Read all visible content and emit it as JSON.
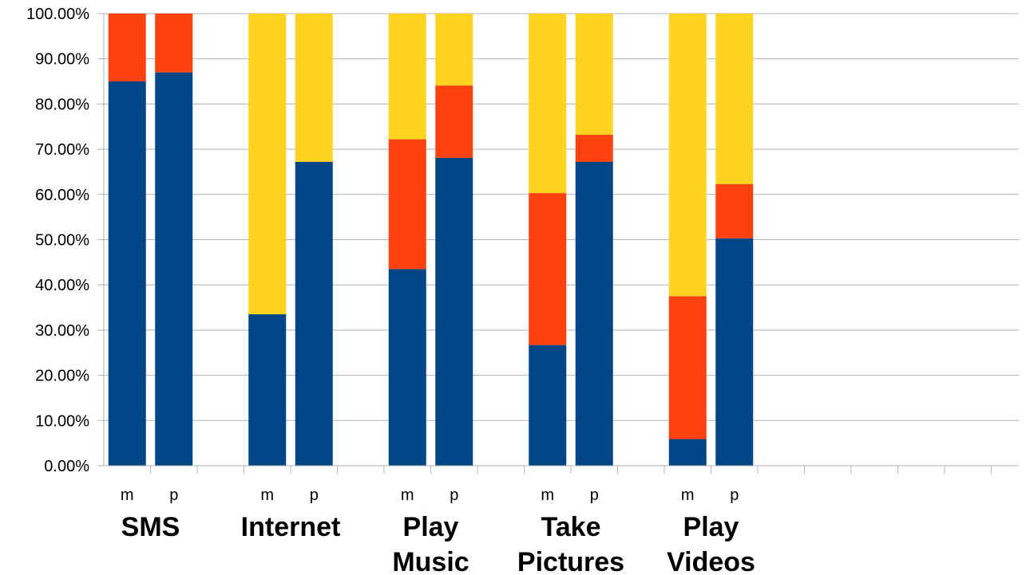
{
  "chart_data": {
    "type": "bar",
    "stacked": true,
    "percent": true,
    "ylim": [
      0,
      100
    ],
    "y_ticks": [
      "0.00%",
      "10.00%",
      "20.00%",
      "30.00%",
      "40.00%",
      "50.00%",
      "60.00%",
      "70.00%",
      "80.00%",
      "90.00%",
      "100.00%"
    ],
    "grid": true,
    "legend": "none",
    "groups": [
      {
        "label_lines": [
          "SMS"
        ],
        "bars": [
          {
            "sub": "m",
            "values": [
              85,
              15,
              0
            ]
          },
          {
            "sub": "p",
            "values": [
              87,
              13,
              0
            ]
          }
        ]
      },
      {
        "label_lines": [
          "Internet"
        ],
        "bars": [
          {
            "sub": "m",
            "values": [
              33.5,
              0,
              66.5
            ]
          },
          {
            "sub": "p",
            "values": [
              67.2,
              0,
              32.8
            ]
          }
        ]
      },
      {
        "label_lines": [
          "Play",
          "Music"
        ],
        "bars": [
          {
            "sub": "m",
            "values": [
              43.5,
              28.7,
              27.8
            ]
          },
          {
            "sub": "p",
            "values": [
              68.1,
              16,
              15.9
            ]
          }
        ]
      },
      {
        "label_lines": [
          "Take",
          "Pictures"
        ],
        "bars": [
          {
            "sub": "m",
            "values": [
              26.7,
              33.6,
              39.7
            ]
          },
          {
            "sub": "p",
            "values": [
              67.2,
              6,
              26.8
            ]
          }
        ]
      },
      {
        "label_lines": [
          "Play",
          "Videos"
        ],
        "bars": [
          {
            "sub": "m",
            "values": [
              5.9,
              31.6,
              62.5
            ]
          },
          {
            "sub": "p",
            "values": [
              50.3,
              12,
              37.7
            ]
          }
        ]
      }
    ],
    "series_colors": [
      "#004586",
      "#ff420e",
      "#ffd320"
    ],
    "extra_empty_categories": 6
  }
}
